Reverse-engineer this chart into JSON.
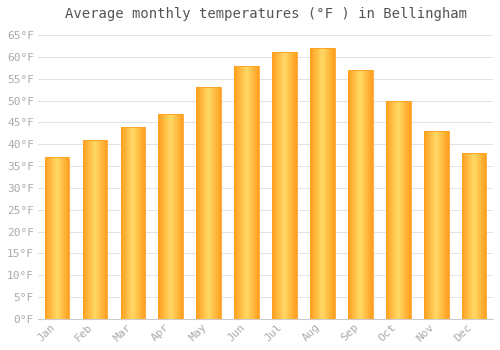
{
  "title": "Average monthly temperatures (°F ) in Bellingham",
  "months": [
    "Jan",
    "Feb",
    "Mar",
    "Apr",
    "May",
    "Jun",
    "Jul",
    "Aug",
    "Sep",
    "Oct",
    "Nov",
    "Dec"
  ],
  "values": [
    37,
    41,
    44,
    47,
    53,
    58,
    61,
    62,
    57,
    50,
    43,
    38
  ],
  "bar_color_center": "#FFD966",
  "bar_color_edge": "#FFA020",
  "background_color": "#FFFFFF",
  "grid_color": "#DDDDDD",
  "ylim": [
    0,
    67
  ],
  "yticks": [
    0,
    5,
    10,
    15,
    20,
    25,
    30,
    35,
    40,
    45,
    50,
    55,
    60,
    65
  ],
  "ytick_labels": [
    "0°F",
    "5°F",
    "10°F",
    "15°F",
    "20°F",
    "25°F",
    "30°F",
    "35°F",
    "40°F",
    "45°F",
    "50°F",
    "55°F",
    "60°F",
    "65°F"
  ],
  "title_fontsize": 10,
  "tick_fontsize": 8,
  "tick_color": "#AAAAAA",
  "spine_color": "#CCCCCC",
  "bar_width": 0.65
}
